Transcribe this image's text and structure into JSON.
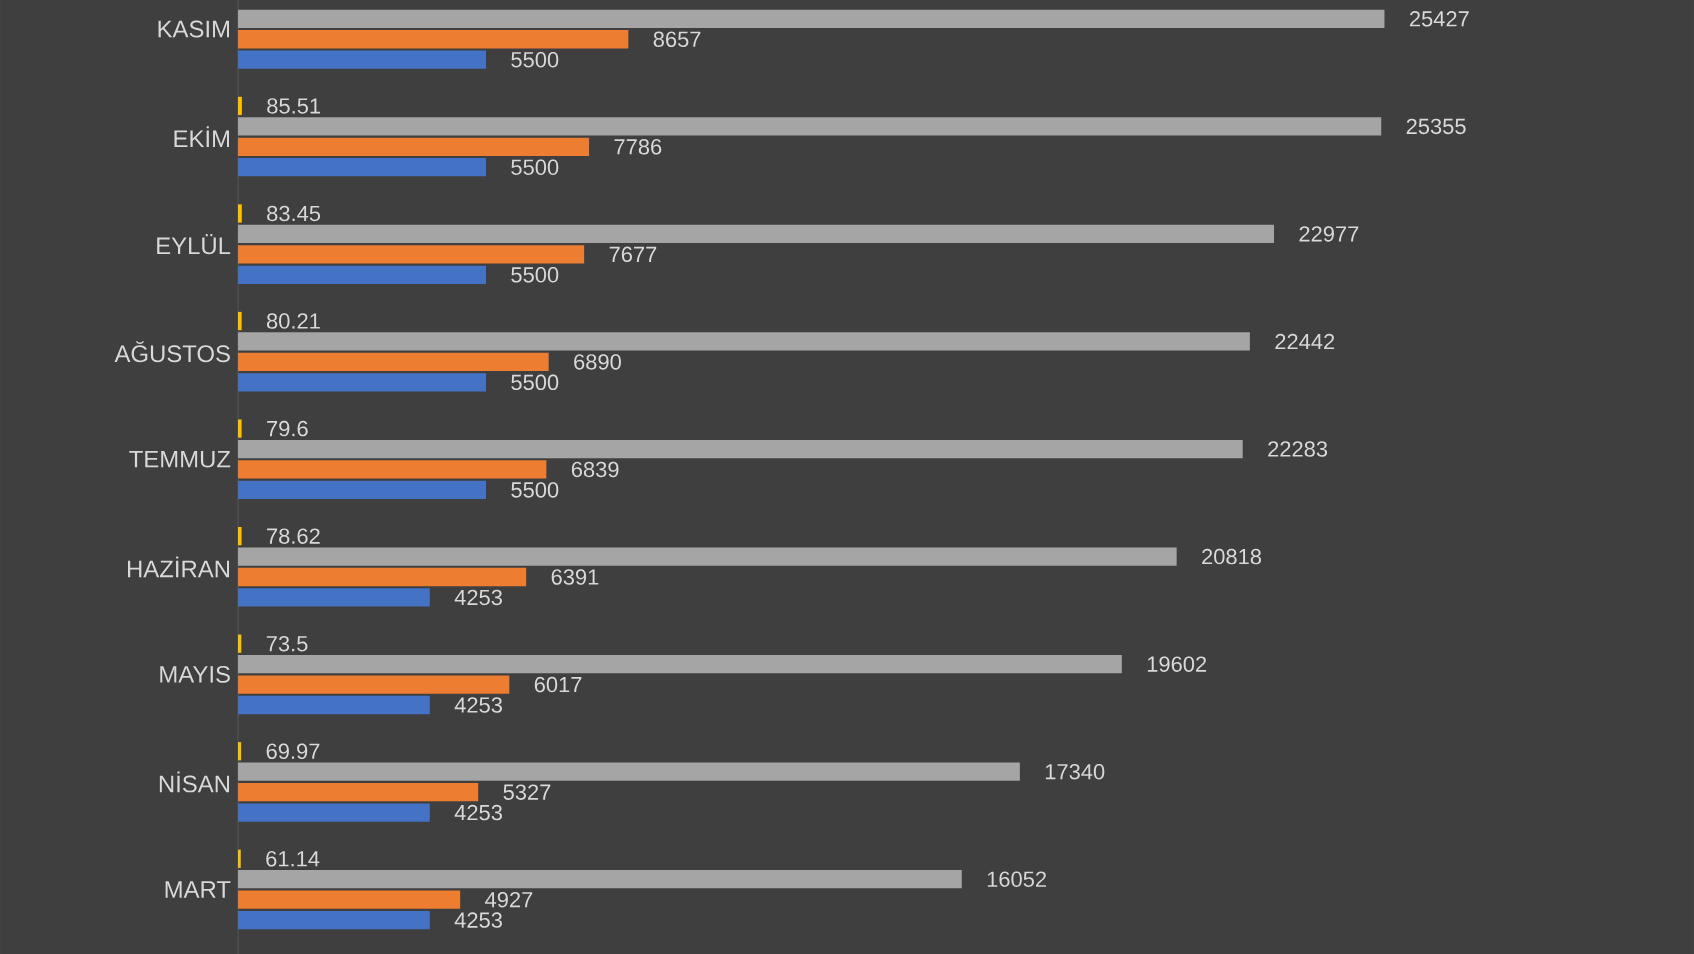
{
  "chart_data": {
    "type": "bar",
    "orientation": "horizontal",
    "categories": [
      "KASIM",
      "EKİM",
      "EYLÜL",
      "AĞUSTOS",
      "TEMMUZ",
      "HAZİRAN",
      "MAYIS",
      "NİSAN",
      "MART"
    ],
    "series": [
      {
        "color": "#4472c4",
        "values": [
          5500,
          5500,
          5500,
          5500,
          5500,
          4253,
          4253,
          4253,
          4253
        ]
      },
      {
        "color": "#ed7d31",
        "values": [
          8657,
          7786,
          7677,
          6890,
          6839,
          6391,
          6017,
          5327,
          4927
        ]
      },
      {
        "color": "#a5a5a5",
        "values": [
          25427,
          25355,
          22977,
          22442,
          22283,
          20818,
          19602,
          17340,
          16052
        ]
      },
      {
        "color": "#ffc000",
        "values": [
          null,
          85.51,
          83.45,
          80.21,
          79.6,
          78.62,
          73.5,
          69.97,
          61.14
        ]
      }
    ],
    "tick_labels": "y",
    "data_labels": true
  }
}
